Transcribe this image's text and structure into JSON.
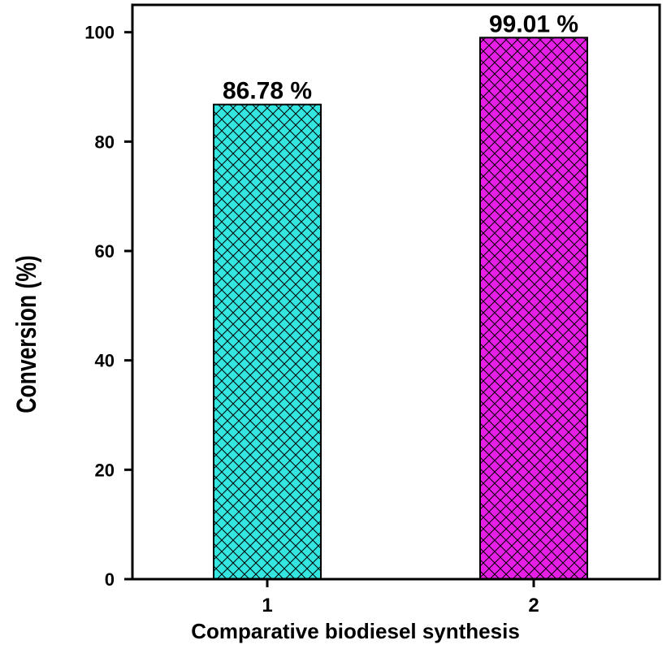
{
  "chart_data": {
    "type": "bar",
    "categories": [
      "1",
      "2"
    ],
    "values": [
      86.78,
      99.01
    ],
    "data_labels": [
      "86.78 %",
      "99.01 %"
    ],
    "colors": [
      "#33e6e0",
      "#e61ee6"
    ],
    "title": "",
    "xlabel": "Comparative biodiesel synthesis",
    "ylabel": "Conversion (%)",
    "ylim": [
      0,
      105
    ],
    "yticks": [
      0,
      20,
      40,
      60,
      80,
      100
    ],
    "ytick_labels": [
      "0",
      "20",
      "40",
      "60",
      "80",
      "100"
    ],
    "grid": false,
    "legend": "none",
    "pattern": "crosshatch"
  }
}
